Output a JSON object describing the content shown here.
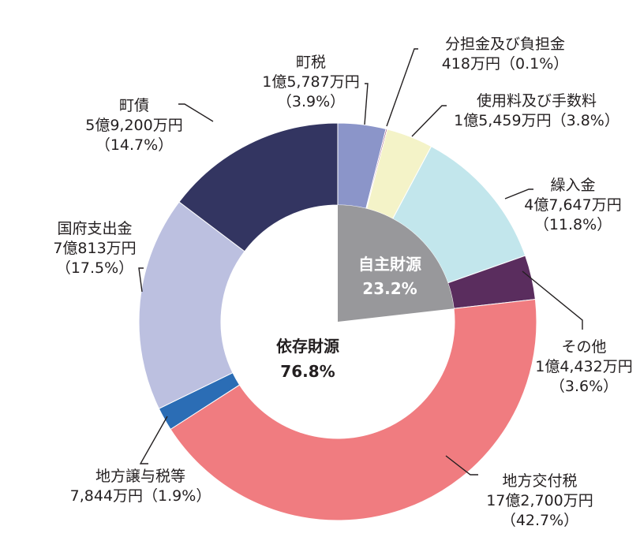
{
  "chart_data": {
    "type": "pie",
    "donut": true,
    "unit": "%",
    "slices": [
      {
        "label": "町税",
        "amount": "1億5,787万円",
        "percent_text": "（3.9%）",
        "value": 3.9,
        "color": "#8b95c9"
      },
      {
        "label": "分担金及び負担金",
        "amount": "418万円",
        "percent_text": "（0.1%）",
        "value": 0.1,
        "color": "#8c2a55"
      },
      {
        "label": "使用料及び手数料",
        "amount": "1億5,459万円",
        "percent_text": "（3.8%）",
        "value": 3.8,
        "color": "#f4f3c8"
      },
      {
        "label": "繰入金",
        "amount": "4億7,647万円",
        "percent_text": "（11.8%）",
        "value": 11.8,
        "color": "#c2e6ec"
      },
      {
        "label": "その他",
        "amount": "1億4,432万円",
        "percent_text": "（3.6%）",
        "value": 3.6,
        "color": "#5a2d5e"
      },
      {
        "label": "地方交付税",
        "amount": "17億2,700万円",
        "percent_text": "（42.7%）",
        "value": 42.7,
        "color": "#f07c80"
      },
      {
        "label": "地方譲与税等",
        "amount": "7,844万円",
        "percent_text": "（1.9%）",
        "value": 1.9,
        "color": "#2b6db5"
      },
      {
        "label": "国府支出金",
        "amount": "7億813万円",
        "percent_text": "（17.5%）",
        "value": 17.5,
        "color": "#bcc0e0"
      },
      {
        "label": "町債",
        "amount": "5億9,200万円",
        "percent_text": "（14.7%）",
        "value": 14.7,
        "color": "#333561"
      }
    ],
    "groups": [
      {
        "label": "自主財源",
        "percent": "23.2%",
        "value": 23.2,
        "color": "#98989b"
      },
      {
        "label": "依存財源",
        "percent": "76.8%",
        "value": 76.8
      }
    ]
  }
}
